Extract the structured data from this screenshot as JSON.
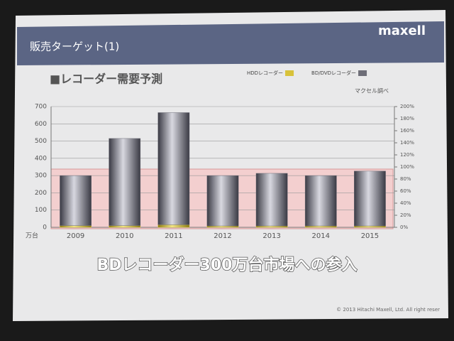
{
  "header": {
    "title": "販売ターゲット(1)",
    "logo": "maxell"
  },
  "chart_data": {
    "type": "bar",
    "stacked": true,
    "title": "■レコーダー需要予測",
    "source": "マクセル調べ",
    "y_unit": "万台",
    "categories": [
      "2009",
      "2010",
      "2011",
      "2012",
      "2013",
      "2014",
      "2015"
    ],
    "series": [
      {
        "name": "HDDレコーダー",
        "color": "#d8c23a",
        "values": [
          10,
          10,
          15,
          8,
          8,
          8,
          8
        ]
      },
      {
        "name": "BD/DVDレコーダー",
        "color": "#6e6e78",
        "values": [
          290,
          505,
          650,
          292,
          305,
          292,
          318
        ]
      }
    ],
    "ylim": [
      0,
      700
    ],
    "yticks": [
      0,
      100,
      200,
      300,
      400,
      500,
      600,
      700
    ],
    "y2lim": [
      0,
      200
    ],
    "y2ticks": [
      {
        "value": 0,
        "label": "0%"
      },
      {
        "value": 20,
        "label": "20%"
      },
      {
        "value": 40,
        "label": "40%"
      },
      {
        "value": 60,
        "label": "60%"
      },
      {
        "value": 80,
        "label": "80%"
      },
      {
        "value": 100,
        "label": "100%"
      },
      {
        "value": 120,
        "label": "120%"
      },
      {
        "value": 140,
        "label": "140%"
      },
      {
        "value": 160,
        "label": "160%"
      },
      {
        "value": 180,
        "label": "180%"
      },
      {
        "value": 200,
        "label": "200%"
      }
    ],
    "grid": true,
    "legend": "top-right"
  },
  "footer": {
    "message": "BDレコーダー300万台市場への参入",
    "copyright": "© 2013 Hitachi Maxell, Ltd. All right reser"
  }
}
